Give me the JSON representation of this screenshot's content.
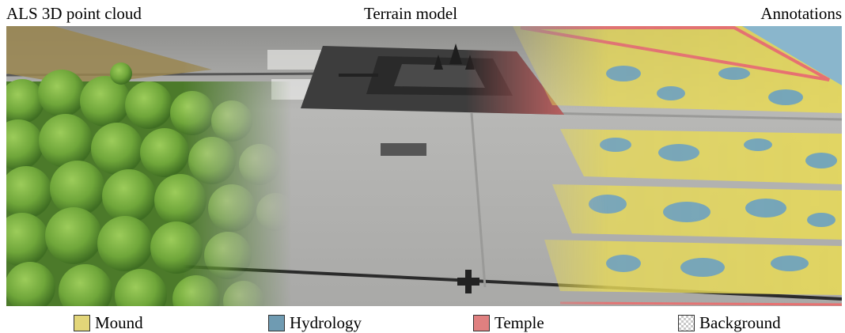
{
  "header": {
    "left": "ALS 3D point cloud",
    "center": "Terrain model",
    "right": "Annotations"
  },
  "legend": [
    {
      "label": "Mound",
      "color": "#e3d679"
    },
    {
      "label": "Hydrology",
      "color": "#6f9bb2"
    },
    {
      "label": "Temple",
      "color": "#e08080"
    },
    {
      "label": "Background",
      "pattern": "checkerboard"
    }
  ],
  "colors": {
    "vegetation": "#6aa236",
    "terrain": "#b5b5b3",
    "temple_dark": "#3a3a3a",
    "mound": "#e6d85a",
    "hydrology": "#6fa3bd",
    "temple": "#e58080",
    "water_edge": "#7bb0d0"
  }
}
